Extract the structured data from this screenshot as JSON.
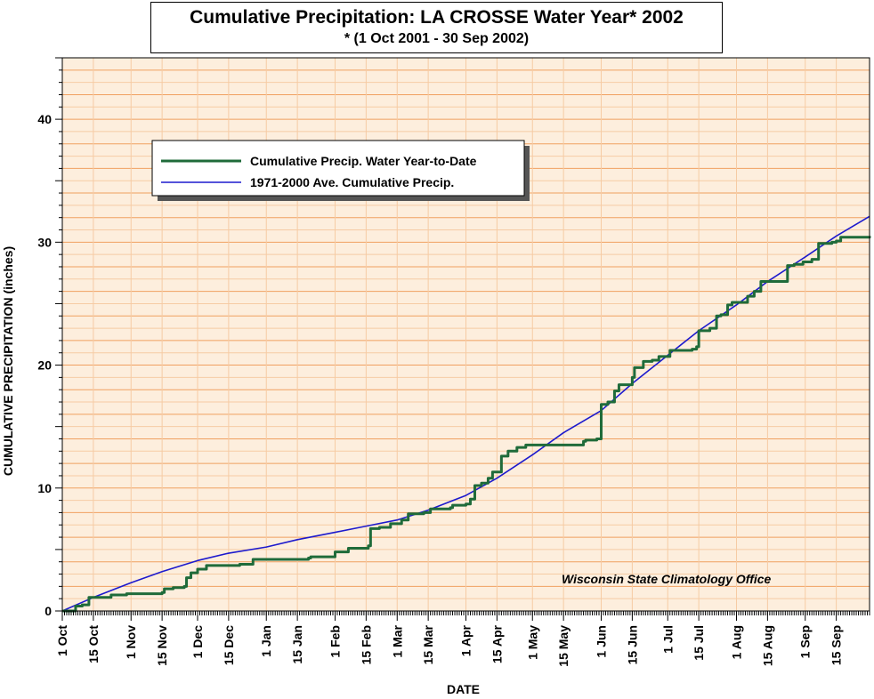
{
  "chart_data": {
    "type": "line",
    "title": "Cumulative Precipitation: LA CROSSE Water Year* 2002",
    "subtitle": "* (1 Oct 2001 - 30 Sep 2002)",
    "xlabel": "DATE",
    "ylabel": "CUMULATIVE PRECIPITATION (inches)",
    "ylim": [
      0,
      45
    ],
    "yticks": [
      0,
      10,
      20,
      30,
      40
    ],
    "xlim": [
      "2001-10-01",
      "2002-09-30"
    ],
    "xtick_labels": [
      {
        "date": "2001-10-01",
        "label": "1 Oct"
      },
      {
        "date": "2001-10-15",
        "label": "15 Oct"
      },
      {
        "date": "2001-11-01",
        "label": "1 Nov"
      },
      {
        "date": "2001-11-15",
        "label": "15 Nov"
      },
      {
        "date": "2001-12-01",
        "label": "1 Dec"
      },
      {
        "date": "2001-12-15",
        "label": "15 Dec"
      },
      {
        "date": "2002-01-01",
        "label": "1 Jan"
      },
      {
        "date": "2002-01-15",
        "label": "15 Jan"
      },
      {
        "date": "2002-02-01",
        "label": "1 Feb"
      },
      {
        "date": "2002-02-15",
        "label": "15 Feb"
      },
      {
        "date": "2002-03-01",
        "label": "1 Mar"
      },
      {
        "date": "2002-03-15",
        "label": "15 Mar"
      },
      {
        "date": "2002-04-01",
        "label": "1 Apr"
      },
      {
        "date": "2002-04-15",
        "label": "15 Apr"
      },
      {
        "date": "2002-05-01",
        "label": "1 May"
      },
      {
        "date": "2002-05-15",
        "label": "15 May"
      },
      {
        "date": "2002-06-01",
        "label": "1 Jun"
      },
      {
        "date": "2002-06-15",
        "label": "15 Jun"
      },
      {
        "date": "2002-07-01",
        "label": "1 Jul"
      },
      {
        "date": "2002-07-15",
        "label": "15 Jul"
      },
      {
        "date": "2002-08-01",
        "label": "1 Aug"
      },
      {
        "date": "2002-08-15",
        "label": "15 Aug"
      },
      {
        "date": "2002-09-01",
        "label": "1 Sep"
      },
      {
        "date": "2002-09-15",
        "label": "15 Sep"
      }
    ],
    "grid": true,
    "legend_position": "upper-left",
    "series": [
      {
        "name": "Cumulative Precip.  Water Year-to-Date",
        "color": "#1f6b3a",
        "step": true,
        "points": [
          [
            "2001-10-01",
            0
          ],
          [
            "2001-10-06",
            0
          ],
          [
            "2001-10-07",
            0.4
          ],
          [
            "2001-10-10",
            0.5
          ],
          [
            "2001-10-13",
            1.1
          ],
          [
            "2001-10-23",
            1.3
          ],
          [
            "2001-10-30",
            1.4
          ],
          [
            "2001-11-15",
            1.5
          ],
          [
            "2001-11-16",
            1.8
          ],
          [
            "2001-11-20",
            1.9
          ],
          [
            "2001-11-25",
            2.0
          ],
          [
            "2001-11-26",
            2.7
          ],
          [
            "2001-11-28",
            3.1
          ],
          [
            "2001-12-01",
            3.4
          ],
          [
            "2001-12-05",
            3.7
          ],
          [
            "2001-12-20",
            3.8
          ],
          [
            "2001-12-26",
            4.2
          ],
          [
            "2002-01-20",
            4.3
          ],
          [
            "2002-01-21",
            4.4
          ],
          [
            "2002-01-31",
            4.4
          ],
          [
            "2002-02-01",
            4.8
          ],
          [
            "2002-02-06",
            4.8
          ],
          [
            "2002-02-07",
            5.1
          ],
          [
            "2002-02-16",
            5.3
          ],
          [
            "2002-02-17",
            6.7
          ],
          [
            "2002-02-21",
            6.8
          ],
          [
            "2002-02-26",
            7.1
          ],
          [
            "2002-03-03",
            7.4
          ],
          [
            "2002-03-06",
            7.9
          ],
          [
            "2002-03-13",
            8.0
          ],
          [
            "2002-03-16",
            8.3
          ],
          [
            "2002-03-25",
            8.4
          ],
          [
            "2002-03-26",
            8.6
          ],
          [
            "2002-04-01",
            8.7
          ],
          [
            "2002-04-03",
            9.1
          ],
          [
            "2002-04-05",
            10.2
          ],
          [
            "2002-04-08",
            10.4
          ],
          [
            "2002-04-11",
            10.8
          ],
          [
            "2002-04-13",
            11.3
          ],
          [
            "2002-04-17",
            12.6
          ],
          [
            "2002-04-20",
            13.0
          ],
          [
            "2002-04-24",
            13.3
          ],
          [
            "2002-04-28",
            13.5
          ],
          [
            "2002-05-24",
            13.8
          ],
          [
            "2002-05-25",
            13.9
          ],
          [
            "2002-05-30",
            14.0
          ],
          [
            "2002-06-01",
            16.8
          ],
          [
            "2002-06-04",
            17.0
          ],
          [
            "2002-06-07",
            17.9
          ],
          [
            "2002-06-09",
            18.4
          ],
          [
            "2002-06-15",
            19.0
          ],
          [
            "2002-06-16",
            19.8
          ],
          [
            "2002-06-20",
            20.3
          ],
          [
            "2002-06-24",
            20.4
          ],
          [
            "2002-06-27",
            20.7
          ],
          [
            "2002-07-02",
            21.2
          ],
          [
            "2002-07-12",
            21.3
          ],
          [
            "2002-07-14",
            21.5
          ],
          [
            "2002-07-15",
            22.8
          ],
          [
            "2002-07-20",
            23.0
          ],
          [
            "2002-07-23",
            24.0
          ],
          [
            "2002-07-25",
            24.1
          ],
          [
            "2002-07-28",
            24.9
          ],
          [
            "2002-07-30",
            25.1
          ],
          [
            "2002-08-06",
            25.6
          ],
          [
            "2002-08-09",
            26.0
          ],
          [
            "2002-08-12",
            26.8
          ],
          [
            "2002-08-22",
            26.8
          ],
          [
            "2002-08-24",
            28.1
          ],
          [
            "2002-08-27",
            28.2
          ],
          [
            "2002-08-31",
            28.4
          ],
          [
            "2002-09-04",
            28.6
          ],
          [
            "2002-09-07",
            29.9
          ],
          [
            "2002-09-13",
            30.0
          ],
          [
            "2002-09-15",
            30.1
          ],
          [
            "2002-09-17",
            30.4
          ],
          [
            "2002-09-30",
            30.5
          ]
        ]
      },
      {
        "name": "1971-2000 Ave. Cumulative Precip.",
        "color": "#1d1acd",
        "step": false,
        "points": [
          [
            "2001-10-01",
            0
          ],
          [
            "2001-10-15",
            1.1
          ],
          [
            "2001-11-01",
            2.3
          ],
          [
            "2001-11-15",
            3.2
          ],
          [
            "2001-12-01",
            4.1
          ],
          [
            "2001-12-15",
            4.7
          ],
          [
            "2002-01-01",
            5.2
          ],
          [
            "2002-01-15",
            5.8
          ],
          [
            "2002-02-01",
            6.4
          ],
          [
            "2002-02-15",
            6.9
          ],
          [
            "2002-03-01",
            7.4
          ],
          [
            "2002-03-15",
            8.2
          ],
          [
            "2002-04-01",
            9.4
          ],
          [
            "2002-04-15",
            10.8
          ],
          [
            "2002-05-01",
            12.7
          ],
          [
            "2002-05-15",
            14.5
          ],
          [
            "2002-06-01",
            16.3
          ],
          [
            "2002-06-15",
            18.5
          ],
          [
            "2002-07-01",
            20.8
          ],
          [
            "2002-07-15",
            22.8
          ],
          [
            "2002-08-01",
            24.9
          ],
          [
            "2002-08-15",
            26.8
          ],
          [
            "2002-09-01",
            28.8
          ],
          [
            "2002-09-15",
            30.5
          ],
          [
            "2002-09-30",
            32.1
          ]
        ]
      }
    ],
    "annotation": "Wisconsin State Climatology Office"
  },
  "colors": {
    "plot_background": "#fdeedd",
    "major_grid": "#f0a060",
    "minor_grid": "#f6cba4"
  }
}
